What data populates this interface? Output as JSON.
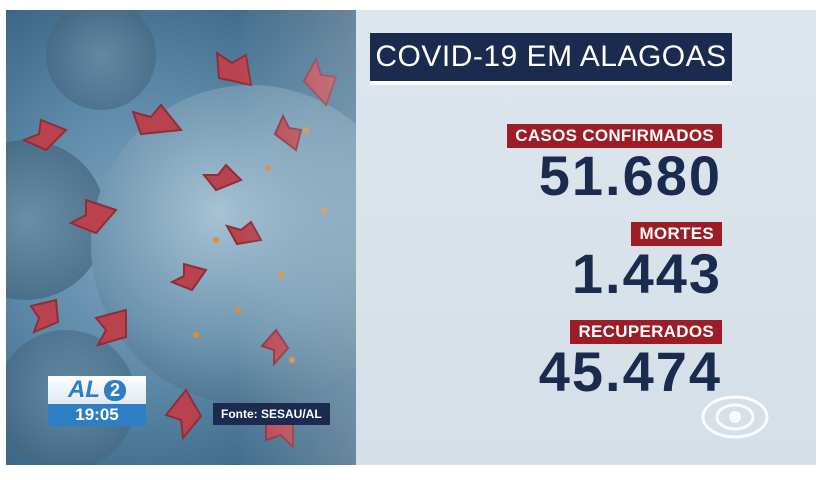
{
  "header": {
    "title": "COVID-19 EM ALAGOAS"
  },
  "stats": [
    {
      "label": "CASOS CONFIRMADOS",
      "value": "51.680"
    },
    {
      "label": "MORTES",
      "value": "1.443"
    },
    {
      "label": "RECUPERADOS",
      "value": "45.474"
    }
  ],
  "channel": {
    "logo_text": "AL",
    "logo_number": "2",
    "time": "19:05"
  },
  "source": "Fonte: SESAU/AL",
  "icons": {
    "virus": "coronavirus-illustration",
    "broadcaster": "globo-logo-icon"
  },
  "colors": {
    "navy": "#1b2a4f",
    "red_label": "#9c1d25",
    "time_blue": "#2d7ec4"
  }
}
